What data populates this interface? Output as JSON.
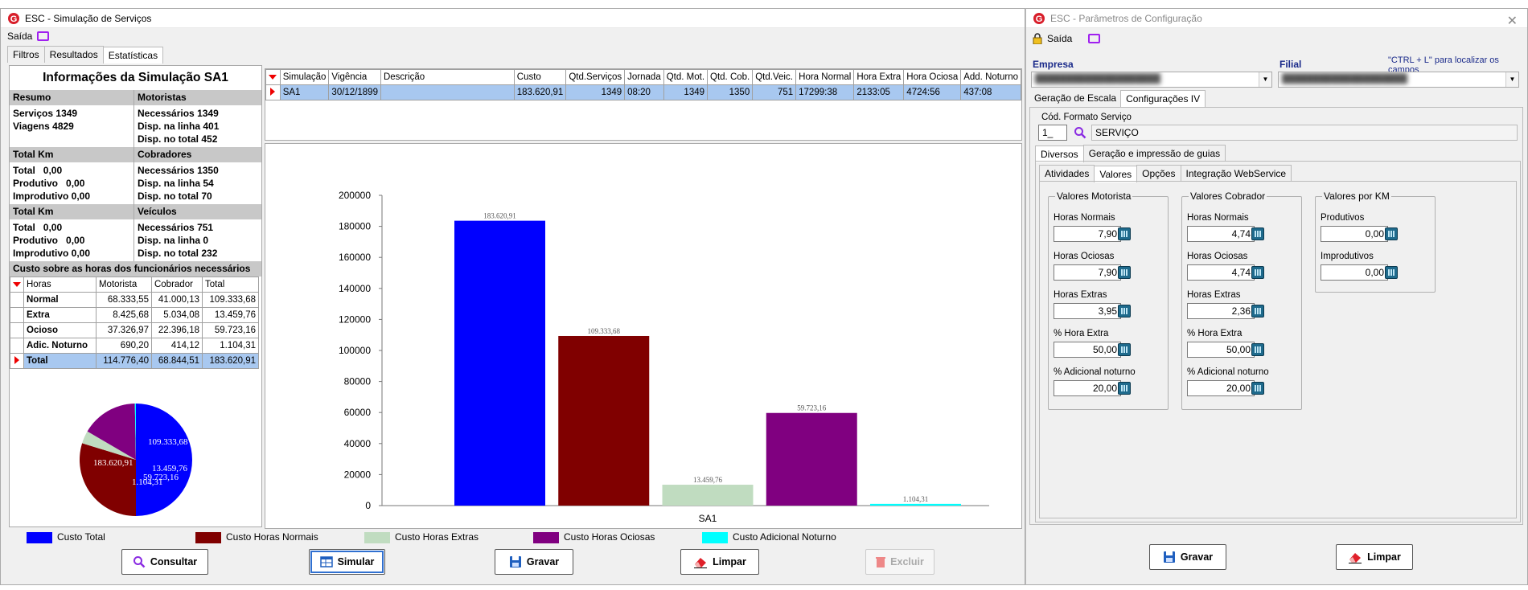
{
  "left_window": {
    "title": "ESC - Simulação de Serviços",
    "menu_exit": "Saída",
    "tabs": [
      "Filtros",
      "Resultados",
      "Estatísticas"
    ],
    "info_title": "Informações da Simulação SA1",
    "resumo": {
      "header": "Resumo",
      "servicos_label": "Serviços",
      "servicos_value": "1349",
      "viagens_label": "Viagens",
      "viagens_value": "4829"
    },
    "motoristas": {
      "header": "Motoristas",
      "necessarios_label": "Necessários",
      "necessarios_value": "1349",
      "disp_linha_label": "Disp. na linha",
      "disp_linha_value": "401",
      "disp_total_label": "Disp. no total",
      "disp_total_value": "452"
    },
    "total_km_1": {
      "header": "Total Km",
      "total_label": "Total",
      "total_value": "0,00",
      "produtivo_label": "Produtivo",
      "produtivo_value": "0,00",
      "improdutivo_label": "Improdutivo",
      "improdutivo_value": "0,00"
    },
    "cobradores": {
      "header": "Cobradores",
      "necessarios_label": "Necessários",
      "necessarios_value": "1350",
      "disp_linha_label": "Disp. na linha",
      "disp_linha_value": "54",
      "disp_total_label": "Disp. no total",
      "disp_total_value": "70"
    },
    "total_km_2": {
      "header": "Total Km",
      "total_label": "Total",
      "total_value": "0,00",
      "produtivo_label": "Produtivo",
      "produtivo_value": "0,00",
      "improdutivo_label": "Improdutivo",
      "improdutivo_value": "0,00"
    },
    "veiculos": {
      "header": "Veículos",
      "necessarios_label": "Necessários",
      "necessarios_value": "751",
      "disp_linha_label": "Disp. na linha",
      "disp_linha_value": "0",
      "disp_total_label": "Disp. no total",
      "disp_total_value": "232"
    },
    "custo_header": "Custo sobre as horas dos funcionários necessários",
    "custo_table": {
      "columns": [
        "Horas",
        "Motorista",
        "Cobrador",
        "Total"
      ],
      "rows": [
        [
          "Normal",
          "68.333,55",
          "41.000,13",
          "109.333,68"
        ],
        [
          "Extra",
          "8.425,68",
          "5.034,08",
          "13.459,76"
        ],
        [
          "Ocioso",
          "37.326,97",
          "22.396,18",
          "59.723,16"
        ],
        [
          "Adic. Noturno",
          "690,20",
          "414,12",
          "1.104,31"
        ],
        [
          "Total",
          "114.776,40",
          "68.844,51",
          "183.620,91"
        ]
      ]
    },
    "pie_labels": {
      "total": "183.620,91",
      "normal": "109.333,68",
      "extra": "13.459,76",
      "ocioso": "59.723,16",
      "noturno": "1.104,31"
    },
    "sim_table": {
      "columns": [
        "Simulação",
        "Vigência",
        "Descrição",
        "Custo",
        "Qtd.Serviços",
        "Jornada",
        "Qtd. Mot.",
        "Qtd. Cob.",
        "Qtd.Veic.",
        "Hora Normal",
        "Hora Extra",
        "Hora Ociosa",
        "Add. Noturno"
      ],
      "row": [
        "SA1",
        "30/12/1899",
        "",
        "183.620,91",
        "1349",
        "08:20",
        "1349",
        "1350",
        "751",
        "17299:38",
        "2133:05",
        "4724:56",
        "437:08"
      ]
    },
    "legend": [
      "Custo Total",
      "Custo Horas Normais",
      "Custo Horas Extras",
      "Custo Horas Ociosas",
      "Custo Adicional Noturno"
    ],
    "buttons": {
      "consultar": "Consultar",
      "simular": "Simular",
      "gravar": "Gravar",
      "limpar": "Limpar",
      "excluir": "Excluir"
    }
  },
  "chart_data": {
    "type": "bar",
    "categories": [
      "SA1"
    ],
    "series": [
      {
        "name": "Custo Total",
        "values": [
          183620.91
        ],
        "label": "183.620,91",
        "color": "#0000ff"
      },
      {
        "name": "Custo Horas Normais",
        "values": [
          109333.68
        ],
        "label": "109.333,68",
        "color": "#800000"
      },
      {
        "name": "Custo Horas Extras",
        "values": [
          13459.76
        ],
        "label": "13.459,76",
        "color": "#c0dcc0"
      },
      {
        "name": "Custo Horas Ociosas",
        "values": [
          59723.16
        ],
        "label": "59.723,16",
        "color": "#800080"
      },
      {
        "name": "Custo Adicional Noturno",
        "values": [
          1104.31
        ],
        "label": "1.104,31",
        "color": "#00ffff"
      }
    ],
    "yticks": [
      "0",
      "20000",
      "40000",
      "60000",
      "80000",
      "100000",
      "120000",
      "140000",
      "160000",
      "180000",
      "200000"
    ],
    "ylim": [
      0,
      200000
    ],
    "legend_position": "bottom"
  },
  "right_window": {
    "title": "ESC - Parâmetros de Configuração",
    "menu_exit": "Saída",
    "empresa_label": "Empresa",
    "filial_label": "Filial",
    "hint": "\"CTRL + L\" para localizar os campos",
    "tabs_main": [
      "Geração de Escala",
      "Configurações IV"
    ],
    "cod_formato_label": "Cód. Formato Serviço",
    "cod_formato_value": "1_",
    "formato_desc": "SERVIÇO",
    "tabs_sub": [
      "Diversos",
      "Geração e impressão de guias"
    ],
    "tabs_sub2": [
      "Atividades",
      "Valores",
      "Opções",
      "Integração WebService"
    ],
    "valores_motorista": {
      "title": "Valores Motorista",
      "fields": [
        {
          "label": "Horas Normais",
          "value": "7,90"
        },
        {
          "label": "Horas Ociosas",
          "value": "7,90"
        },
        {
          "label": "Horas Extras",
          "value": "3,95"
        },
        {
          "label": "% Hora Extra",
          "value": "50,00"
        },
        {
          "label": "% Adicional noturno",
          "value": "20,00"
        }
      ]
    },
    "valores_cobrador": {
      "title": "Valores Cobrador",
      "fields": [
        {
          "label": "Horas Normais",
          "value": "4,74"
        },
        {
          "label": "Horas Ociosas",
          "value": "4,74"
        },
        {
          "label": "Horas Extras",
          "value": "2,36"
        },
        {
          "label": "% Hora Extra",
          "value": "50,00"
        },
        {
          "label": "% Adicional noturno",
          "value": "20,00"
        }
      ]
    },
    "valores_km": {
      "title": "Valores por KM",
      "fields": [
        {
          "label": "Produtivos",
          "value": "0,00"
        },
        {
          "label": "Improdutivos",
          "value": "0,00"
        }
      ]
    },
    "buttons": {
      "gravar": "Gravar",
      "limpar": "Limpar"
    }
  }
}
